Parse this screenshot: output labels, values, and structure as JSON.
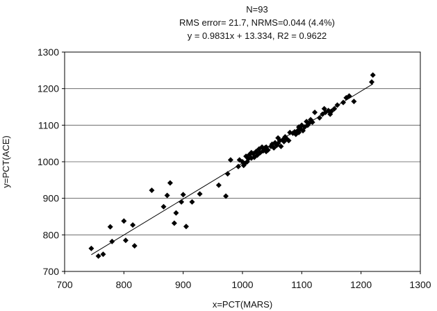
{
  "chart_data": {
    "type": "scatter",
    "title_lines": [
      "N=93",
      "RMS error= 21.7, NRMS=0.044 (4.4%)",
      "y = 0.9831x + 13.334, R2 = 0.9622"
    ],
    "xlabel": "x=PCT(MARS)",
    "ylabel": "y=PCT(ACE)",
    "xlim": [
      700,
      1300
    ],
    "ylim": [
      700,
      1300
    ],
    "xticks": [
      "700",
      "800",
      "900",
      "1000",
      "1100",
      "1200",
      "1300"
    ],
    "yticks": [
      "700",
      "800",
      "900",
      "1000",
      "1100",
      "1200",
      "1300"
    ],
    "grid": "horizontal",
    "marker_color": "#000000",
    "trendline": {
      "slope": 0.9831,
      "intercept": 13.334,
      "x_range": [
        745,
        1220
      ]
    },
    "points": [
      [
        745,
        763
      ],
      [
        757,
        742
      ],
      [
        765,
        747
      ],
      [
        777,
        822
      ],
      [
        780,
        782
      ],
      [
        800,
        838
      ],
      [
        803,
        785
      ],
      [
        815,
        827
      ],
      [
        818,
        770
      ],
      [
        847,
        922
      ],
      [
        867,
        877
      ],
      [
        873,
        908
      ],
      [
        878,
        942
      ],
      [
        885,
        832
      ],
      [
        888,
        860
      ],
      [
        897,
        890
      ],
      [
        900,
        910
      ],
      [
        905,
        823
      ],
      [
        915,
        890
      ],
      [
        928,
        912
      ],
      [
        960,
        936
      ],
      [
        972,
        906
      ],
      [
        975,
        967
      ],
      [
        980,
        1005
      ],
      [
        993,
        987
      ],
      [
        995,
        1005
      ],
      [
        1000,
        1000
      ],
      [
        1002,
        990
      ],
      [
        1004,
        995
      ],
      [
        1006,
        1015
      ],
      [
        1008,
        1000
      ],
      [
        1010,
        1008
      ],
      [
        1012,
        1020
      ],
      [
        1015,
        1010
      ],
      [
        1018,
        1022
      ],
      [
        1020,
        1012
      ],
      [
        1023,
        1028
      ],
      [
        1025,
        1018
      ],
      [
        1028,
        1035
      ],
      [
        1030,
        1025
      ],
      [
        1033,
        1040
      ],
      [
        1035,
        1030
      ],
      [
        1038,
        1038
      ],
      [
        1040,
        1028
      ],
      [
        1043,
        1032
      ],
      [
        1048,
        1042
      ],
      [
        1050,
        1048
      ],
      [
        1053,
        1038
      ],
      [
        1055,
        1052
      ],
      [
        1058,
        1045
      ],
      [
        1060,
        1050
      ],
      [
        1063,
        1058
      ],
      [
        1065,
        1042
      ],
      [
        1068,
        1060
      ],
      [
        1070,
        1055
      ],
      [
        1072,
        1068
      ],
      [
        1075,
        1062
      ],
      [
        1078,
        1058
      ],
      [
        1085,
        1078
      ],
      [
        1088,
        1082
      ],
      [
        1090,
        1075
      ],
      [
        1093,
        1085
      ],
      [
        1095,
        1080
      ],
      [
        1098,
        1090
      ],
      [
        1100,
        1100
      ],
      [
        1102,
        1085
      ],
      [
        1105,
        1095
      ],
      [
        1108,
        1110
      ],
      [
        1110,
        1100
      ],
      [
        1112,
        1105
      ],
      [
        1115,
        1115
      ],
      [
        1118,
        1108
      ],
      [
        1122,
        1135
      ],
      [
        1130,
        1120
      ],
      [
        1135,
        1130
      ],
      [
        1138,
        1145
      ],
      [
        1140,
        1135
      ],
      [
        1145,
        1140
      ],
      [
        1148,
        1130
      ],
      [
        1150,
        1138
      ],
      [
        1155,
        1145
      ],
      [
        1160,
        1155
      ],
      [
        1170,
        1162
      ],
      [
        1175,
        1175
      ],
      [
        1180,
        1180
      ],
      [
        1188,
        1165
      ],
      [
        1218,
        1218
      ],
      [
        1220,
        1237
      ],
      [
        1040,
        1040
      ],
      [
        1060,
        1065
      ],
      [
        1080,
        1080
      ],
      [
        1095,
        1095
      ],
      [
        1015,
        1025
      ]
    ]
  }
}
